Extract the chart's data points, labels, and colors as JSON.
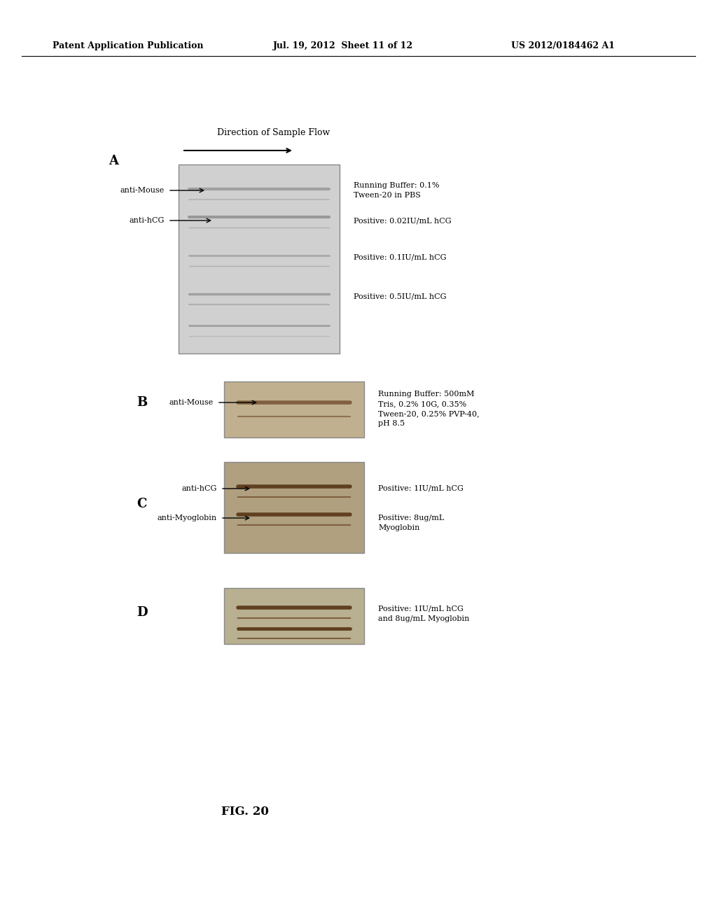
{
  "header_left": "Patent Application Publication",
  "header_mid": "Jul. 19, 2012  Sheet 11 of 12",
  "header_right": "US 2012/0184462 A1",
  "figure_label": "FIG. 20",
  "direction_label": "Direction of Sample Flow",
  "panel_A_label": "A",
  "panel_B_label": "B",
  "panel_C_label": "C",
  "panel_D_label": "D",
  "arrow_color": "#000000",
  "box_fill_A": "#c8c8c8",
  "box_fill_B": "#b8b8b8",
  "box_fill_C": "#b0b0b0",
  "box_fill_D": "#b8b8b8",
  "text_color": "#000000",
  "background": "#ffffff",
  "annotations": {
    "A": {
      "anti_mouse_label": "anti-Mouse",
      "anti_hcg_label": "anti-hCG",
      "right_text": [
        "Running Buffer: 0.1%",
        "Tween-20 in PBS",
        "",
        "Positive: 0.02IU/mL hCG",
        "",
        "Positive: 0.1IU/mL hCG",
        "",
        "Positive: 0.5IU/mL hCG"
      ]
    },
    "B": {
      "anti_mouse_label": "anti-Mouse",
      "right_text": [
        "Running Buffer: 500mM",
        "Tris, 0.2% 10G, 0.35%",
        "Tween-20, 0.25% PVP-40,",
        "pH 8.5"
      ]
    },
    "C": {
      "anti_hcg_label": "anti-hCG",
      "anti_myoglobin_label": "anti-Myoglobin",
      "right_text_hcg": [
        "Positive: 1IU/mL hCG"
      ],
      "right_text_myo": [
        "Positive: 8ug/mL",
        "Myoglobin"
      ]
    },
    "D": {
      "right_text": [
        "Positive: 1IU/mL hCG",
        "and 8ug/mL Myoglobin"
      ]
    }
  }
}
